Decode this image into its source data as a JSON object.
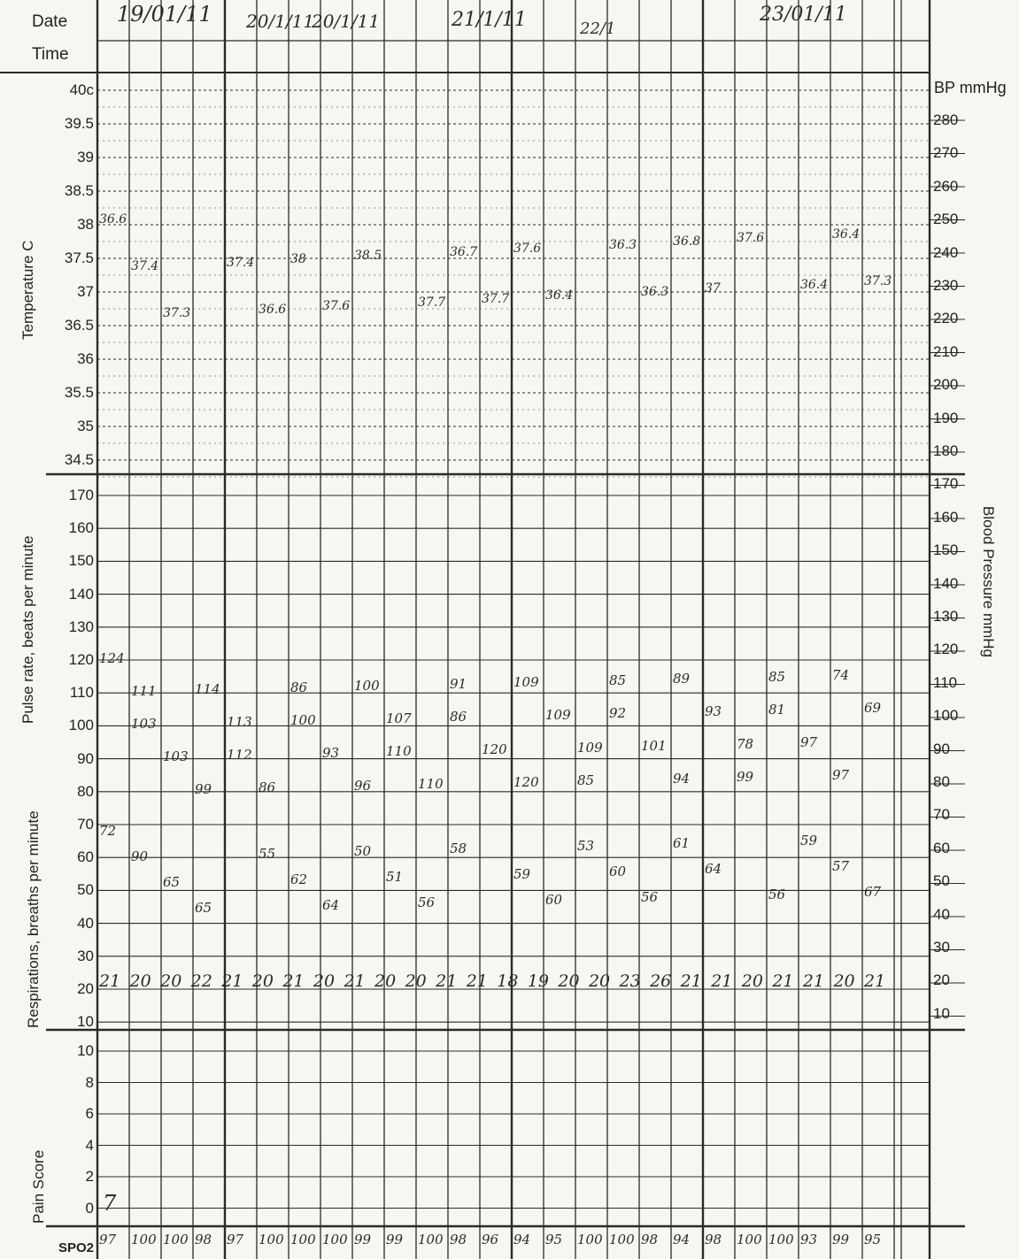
{
  "header": {
    "date_label": "Date",
    "time_label": "Time",
    "dates": [
      "19/01/11",
      "20/1/11",
      "20/1/11",
      "21/1/11",
      "22/1",
      "23/01/11"
    ]
  },
  "labels": {
    "bp_header": "BP mmHg",
    "temperature_axis": "Temperature C",
    "pulse_axis": "Pulse rate, beats per minute",
    "resp_axis": "Respirations, breaths per minute",
    "bp_axis": "Blood Pressure mmHg",
    "pain_axis": "Pain Score",
    "spo2_label": "SPO2"
  },
  "scales": {
    "temperature": [
      "40c",
      "39.5",
      "39",
      "38.5",
      "38",
      "37.5",
      "37",
      "36.5",
      "36",
      "35.5",
      "35",
      "34.5"
    ],
    "pulse": [
      "170",
      "160",
      "150",
      "140",
      "130",
      "120",
      "110",
      "100",
      "90",
      "80",
      "70",
      "60",
      "50",
      "40",
      "30",
      "20",
      "10"
    ],
    "pain": [
      "10",
      "8",
      "6",
      "4",
      "2",
      "0"
    ],
    "bp_right": [
      "280",
      "270",
      "260",
      "250",
      "240",
      "230",
      "220",
      "210",
      "200",
      "190",
      "180",
      "170",
      "160",
      "150",
      "140",
      "130",
      "120",
      "110",
      "100",
      "90",
      "80",
      "70",
      "60",
      "50",
      "40",
      "30",
      "20",
      "10"
    ]
  },
  "handwritten": {
    "temp_values": [
      "36.6",
      "37.4",
      "37.3",
      "37.4",
      "36.6",
      "38",
      "37.6",
      "38.5",
      "37.7",
      "36.7",
      "37.7",
      "37.6",
      "36.4",
      "36.3",
      "36.3",
      "36.8",
      "37",
      "37.6",
      "36.4",
      "36.4",
      "37.3"
    ],
    "pulse_values": [
      "124",
      "111",
      "103",
      "103",
      "99",
      "114",
      "113",
      "112",
      "86",
      "86",
      "100",
      "93",
      "96",
      "100",
      "107",
      "110",
      "110",
      "91",
      "86",
      "120",
      "120",
      "109",
      "109",
      "109",
      "85",
      "85",
      "92",
      "101",
      "94",
      "89",
      "93",
      "78",
      "99",
      "85",
      "81",
      "97",
      "97",
      "74",
      "69"
    ],
    "bp_low_values": [
      "72",
      "90",
      "65",
      "65",
      "55",
      "62",
      "64",
      "50",
      "51",
      "56",
      "58",
      "59",
      "60",
      "53",
      "60",
      "56",
      "61",
      "64",
      "56",
      "59",
      "57",
      "67"
    ],
    "resp_values": [
      "21",
      "20",
      "20",
      "22",
      "21",
      "20",
      "21",
      "20",
      "21",
      "20",
      "20",
      "21",
      "21",
      "18",
      "19",
      "20",
      "20",
      "23",
      "26",
      "21",
      "21",
      "20",
      "21",
      "21",
      "20",
      "21"
    ],
    "pain_values": [
      "7"
    ],
    "spo2_values": [
      "97",
      "100",
      "100",
      "98",
      "97",
      "100",
      "100",
      "100",
      "99",
      "99",
      "100",
      "98",
      "96",
      "94",
      "95",
      "100",
      "100",
      "98",
      "94",
      "98",
      "100",
      "100",
      "93",
      "99",
      "95"
    ]
  }
}
